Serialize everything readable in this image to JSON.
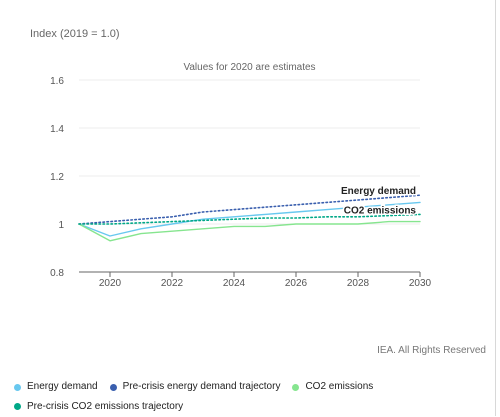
{
  "chart_data": {
    "type": "line",
    "ylabel": "Index (2019 = 1.0)",
    "xlabel": "",
    "annotation": "Values for 2020 are estimates",
    "credit": "IEA. All Rights Reserved",
    "xlim": [
      2019,
      2030
    ],
    "ylim": [
      0.8,
      1.6
    ],
    "x_ticks": [
      2020,
      2022,
      2024,
      2026,
      2028,
      2030
    ],
    "y_ticks": [
      0.8,
      1,
      1.2,
      1.4,
      1.6
    ],
    "y_tick_labels": [
      "0.8",
      "1",
      "1.2",
      "1.4",
      "1.6"
    ],
    "grid": "horizontal",
    "legend_position": "bottom",
    "series": [
      {
        "name": "Energy demand",
        "color": "#68c8ef",
        "style": "solid",
        "x": [
          2019,
          2020,
          2021,
          2022,
          2023,
          2024,
          2025,
          2026,
          2027,
          2028,
          2029,
          2030
        ],
        "y": [
          1.0,
          0.95,
          0.98,
          1.0,
          1.02,
          1.03,
          1.04,
          1.05,
          1.06,
          1.07,
          1.08,
          1.09
        ]
      },
      {
        "name": "Pre-crisis energy demand trajectory",
        "color": "#3a5fae",
        "style": "dotted",
        "x": [
          2019,
          2020,
          2021,
          2022,
          2023,
          2024,
          2025,
          2026,
          2027,
          2028,
          2029,
          2030
        ],
        "y": [
          1.0,
          1.01,
          1.02,
          1.03,
          1.05,
          1.06,
          1.07,
          1.08,
          1.09,
          1.1,
          1.11,
          1.12
        ]
      },
      {
        "name": "CO2 emissions",
        "color": "#86e58f",
        "style": "solid",
        "x": [
          2019,
          2020,
          2021,
          2022,
          2023,
          2024,
          2025,
          2026,
          2027,
          2028,
          2029,
          2030
        ],
        "y": [
          1.0,
          0.93,
          0.96,
          0.97,
          0.98,
          0.99,
          0.99,
          1.0,
          1.0,
          1.0,
          1.01,
          1.01
        ]
      },
      {
        "name": "Pre-crisis CO2 emissions trajectory",
        "color": "#00a887",
        "style": "dotted",
        "x": [
          2019,
          2020,
          2021,
          2022,
          2023,
          2024,
          2025,
          2026,
          2027,
          2028,
          2029,
          2030
        ],
        "y": [
          1.0,
          1.0,
          1.005,
          1.01,
          1.015,
          1.02,
          1.025,
          1.025,
          1.03,
          1.03,
          1.035,
          1.04
        ]
      }
    ],
    "line_labels": [
      {
        "text": "Energy demand",
        "x": 2030,
        "y": 1.12
      },
      {
        "text": "CO2 emissions",
        "x": 2030,
        "y": 1.04
      }
    ]
  }
}
